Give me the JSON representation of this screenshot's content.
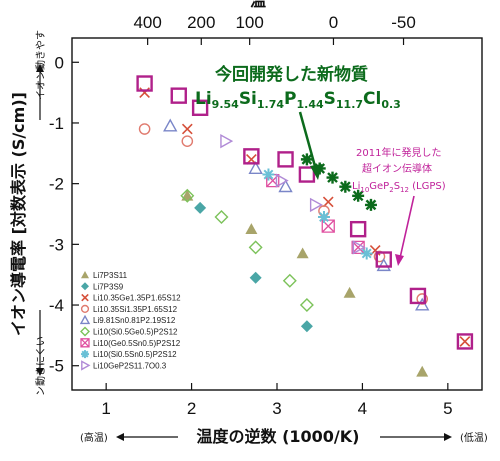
{
  "chart_data": {
    "type": "scatter",
    "title": "",
    "xlabel": "温度の逆数 (1000/K)",
    "ylabel": "イオン導電率 [対数表示 (S/cm)]",
    "top_axis_label_partial": "温",
    "top_axis_ticks": [
      400,
      200,
      100,
      0,
      -50
    ],
    "xlim": [
      0.6,
      5.4
    ],
    "ylim": [
      -5.4,
      0.4
    ],
    "xticks": [
      1,
      2,
      3,
      4,
      5
    ],
    "yticks": [
      0,
      -1,
      -2,
      -3,
      -4,
      -5
    ],
    "xtick_labels": [
      "1",
      "2",
      "3",
      "4",
      "5"
    ],
    "ytick_labels": [
      "0",
      "-1",
      "-2",
      "-3",
      "-4",
      "-5"
    ],
    "y_axis_arrow_up": "イオン動きやす",
    "y_axis_arrow_down": "ン動きにくい",
    "x_axis_left_note": "(高温)",
    "x_axis_right_note": "(低温)",
    "grid": false,
    "legend_position": "bottom-left",
    "series": [
      {
        "name": "Li7P3S11",
        "marker": "triangle-filled",
        "color": "#a8a46a",
        "x": [
          1.95,
          2.7,
          3.3,
          3.85,
          4.7
        ],
        "y": [
          -2.2,
          -2.75,
          -3.15,
          -3.8,
          -5.1
        ]
      },
      {
        "name": "Li7P3S9",
        "marker": "diamond-filled",
        "color": "#4aa6a6",
        "x": [
          2.1,
          2.75,
          3.35
        ],
        "y": [
          -2.4,
          -3.55,
          -4.35
        ]
      },
      {
        "name": "Li10.35Ge1.35P1.65S12",
        "marker": "x",
        "color": "#d6503a",
        "x": [
          1.45,
          1.95,
          2.7,
          3.6,
          4.15,
          5.2
        ],
        "y": [
          -0.5,
          -1.1,
          -1.6,
          -2.3,
          -3.1,
          -4.6
        ]
      },
      {
        "name": "Li10.35Si1.35P1.65S12",
        "marker": "circle-open",
        "color": "#e07a6e",
        "x": [
          1.45,
          1.95,
          3.55,
          4.2,
          4.7
        ],
        "y": [
          -1.1,
          -1.3,
          -2.45,
          -3.2,
          -3.9
        ]
      },
      {
        "name": "Li9.81Sn0.81P2.19S12",
        "marker": "triangle-open",
        "color": "#7a86c8",
        "x": [
          1.75,
          2.75,
          3.1,
          4.25,
          4.7
        ],
        "y": [
          -1.05,
          -1.75,
          -2.05,
          -3.35,
          -4.0
        ]
      },
      {
        "name": "Li10(Si0.5Ge0.5)P2S12",
        "marker": "diamond-open",
        "color": "#7cc25a",
        "x": [
          1.95,
          2.35,
          2.75,
          3.15,
          3.35
        ],
        "y": [
          -2.2,
          -2.55,
          -3.05,
          -3.6,
          -4.0
        ]
      },
      {
        "name": "Li10(Ge0.5Sn0.5)P2S12",
        "marker": "square-cross",
        "color": "#e050a0",
        "x": [
          2.95,
          3.6,
          3.95
        ],
        "y": [
          -1.95,
          -2.7,
          -3.05
        ]
      },
      {
        "name": "Li10(Si0.5Sn0.5)P2S12",
        "marker": "cross-light",
        "color": "#6ac0d6",
        "x": [
          2.9,
          3.55,
          4.05
        ],
        "y": [
          -1.85,
          -2.55,
          -3.15
        ]
      },
      {
        "name": "Li10GeP2S11.7O0.3",
        "marker": "triangle-right-open",
        "color": "#b08ad6",
        "x": [
          2.4,
          3.05,
          3.45,
          3.95
        ],
        "y": [
          -1.3,
          -1.95,
          -2.35,
          -3.05
        ]
      },
      {
        "name": "Li10GeP2S12 (LGPS)",
        "marker": "square-open",
        "color": "#b0208a",
        "x": [
          1.45,
          1.85,
          2.1,
          2.7,
          3.1,
          3.35,
          3.95,
          4.25,
          4.65,
          5.2
        ],
        "y": [
          -0.35,
          -0.55,
          -0.75,
          -1.55,
          -1.6,
          -1.85,
          -2.75,
          -3.25,
          -3.85,
          -4.6
        ]
      },
      {
        "name": "Li9.54Si1.74P1.44S11.7Cl0.3",
        "marker": "star",
        "color": "#0c6b1c",
        "x": [
          3.35,
          3.5,
          3.65,
          3.8,
          3.95,
          4.1
        ],
        "y": [
          -1.6,
          -1.75,
          -1.9,
          -2.05,
          -2.2,
          -2.35
        ]
      }
    ],
    "annotations": {
      "new_material_title": "今回開発した新物質",
      "new_material_formula": "Li9.54Si1.74P1.44S11.7Cl0.3",
      "lgps_line1": "2011年に発見した",
      "lgps_line2": "超イオン伝導体",
      "lgps_formula": "Li10GeP2S12 (LGPS)"
    }
  }
}
